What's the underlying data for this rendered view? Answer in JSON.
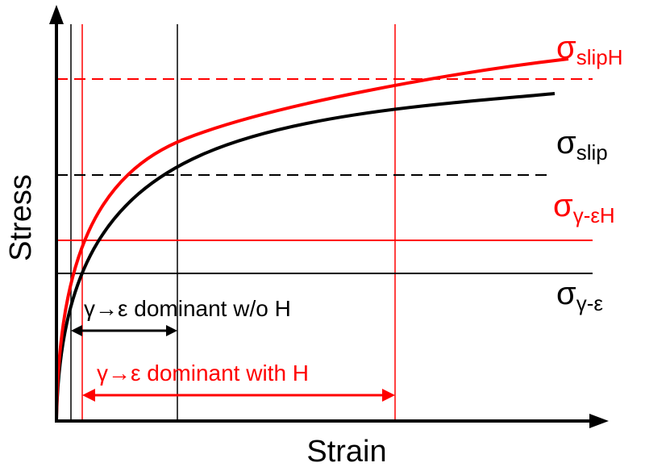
{
  "axes": {
    "x_label": "Strain",
    "y_label": "Stress"
  },
  "levels": [
    {
      "symbol": "σ",
      "subscript": "slipH"
    },
    {
      "symbol": "σ",
      "subscript": "slip"
    },
    {
      "symbol": "σ",
      "subscript": "γ-εH"
    },
    {
      "symbol": "σ",
      "subscript": "γ-ε"
    }
  ],
  "annotations": [
    "γ→ε dominant w/o H",
    "γ→ε dominant with H"
  ]
}
